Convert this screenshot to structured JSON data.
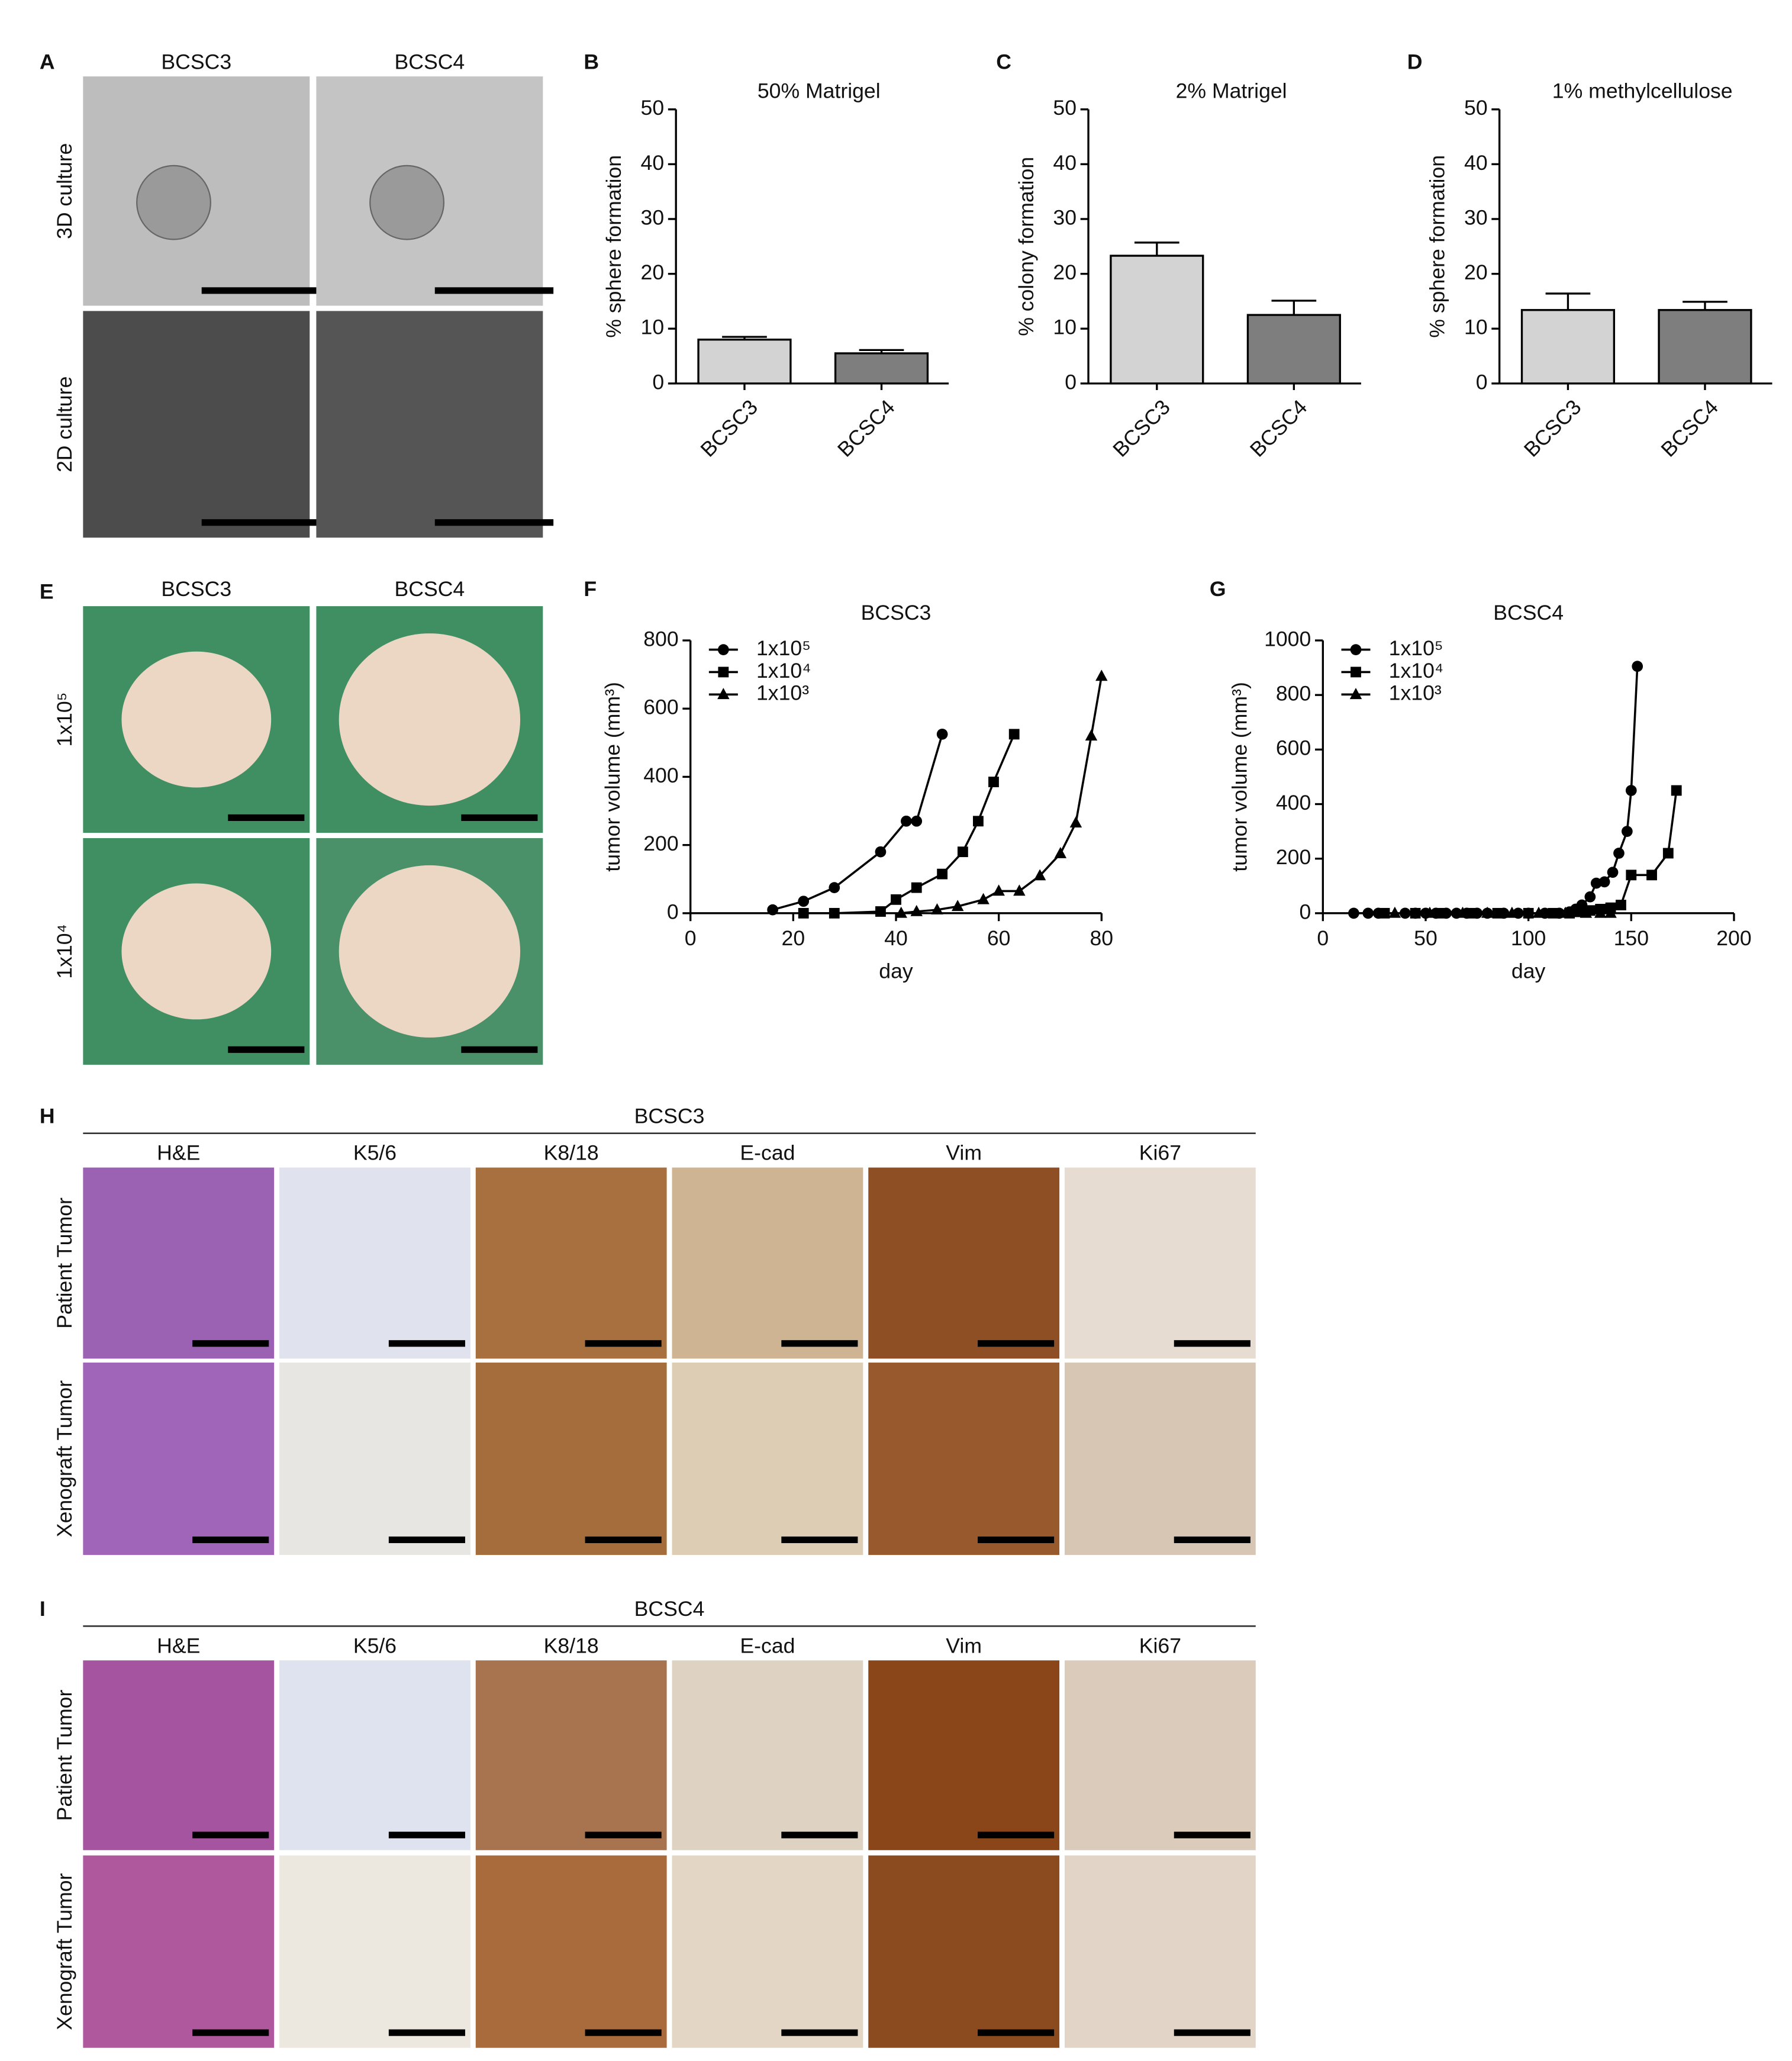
{
  "chart_data": [
    {
      "type": "bar",
      "label": "B",
      "title": "50% Matrigel",
      "y_label": "% sphere formation",
      "categories": [
        "BCSC3",
        "BCSC4"
      ],
      "values": [
        8,
        5.5
      ],
      "errors": [
        0.5,
        0.6
      ],
      "colors": [
        "#d3d3d3",
        "#7e7e7e"
      ],
      "ylim": [
        0,
        50
      ],
      "yticks": [
        0,
        10,
        20,
        30,
        40,
        50
      ]
    },
    {
      "type": "bar",
      "label": "C",
      "title": "2% Matrigel",
      "y_label": "% colony formation",
      "categories": [
        "BCSC3",
        "BCSC4"
      ],
      "values": [
        23.3,
        12.5
      ],
      "errors": [
        2.4,
        2.6
      ],
      "colors": [
        "#d3d3d3",
        "#7e7e7e"
      ],
      "ylim": [
        0,
        50
      ],
      "yticks": [
        0,
        10,
        20,
        30,
        40,
        50
      ]
    },
    {
      "type": "bar",
      "label": "D",
      "title": "1% methylcellulose",
      "y_label": "% sphere formation",
      "categories": [
        "BCSC3",
        "BCSC4"
      ],
      "values": [
        13.4,
        13.4
      ],
      "errors": [
        3,
        1.5
      ],
      "colors": [
        "#d3d3d3",
        "#7e7e7e"
      ],
      "ylim": [
        0,
        50
      ],
      "yticks": [
        0,
        10,
        20,
        30,
        40,
        50
      ]
    },
    {
      "type": "line",
      "label": "F",
      "title": "BCSC3",
      "x_label": "day",
      "y_label": "tumor volume (mm³)",
      "xlim": [
        0,
        80
      ],
      "xticks": [
        0,
        20,
        40,
        60,
        80
      ],
      "ylim": [
        0,
        800
      ],
      "yticks": [
        0,
        200,
        400,
        600,
        800
      ],
      "legend": "upper left",
      "series": [
        {
          "name": "1x10⁵",
          "color": "#000000",
          "marker": "circle",
          "x": [
            16,
            22,
            28,
            37,
            42,
            44,
            49
          ],
          "values": [
            10,
            35,
            75,
            180,
            270,
            270,
            525
          ]
        },
        {
          "name": "1x10⁴",
          "color": "#000000",
          "marker": "square",
          "x": [
            22,
            28,
            37,
            40,
            44,
            49,
            53,
            56,
            59,
            63
          ],
          "values": [
            0,
            0,
            5,
            40,
            75,
            115,
            180,
            270,
            385,
            525
          ]
        },
        {
          "name": "1x10³",
          "color": "#000000",
          "marker": "triangle",
          "x": [
            41,
            44,
            48,
            52,
            57,
            60,
            64,
            68,
            72,
            75,
            78,
            80
          ],
          "values": [
            0,
            5,
            10,
            20,
            40,
            65,
            65,
            110,
            175,
            265,
            520,
            695
          ]
        }
      ]
    },
    {
      "type": "line",
      "label": "G",
      "title": "BCSC4",
      "x_label": "day",
      "y_label": "tumor volume (mm³)",
      "xlim": [
        0,
        200
      ],
      "xticks": [
        0,
        50,
        100,
        150,
        200
      ],
      "ylim": [
        0,
        1000
      ],
      "yticks": [
        0,
        200,
        400,
        600,
        800,
        1000
      ],
      "legend": "upper left",
      "series": [
        {
          "name": "1x10⁵",
          "color": "#000000",
          "marker": "circle",
          "x": [
            15,
            22,
            27,
            40,
            45,
            50,
            55,
            60,
            65,
            70,
            75,
            80,
            88,
            95,
            100,
            108,
            115,
            120,
            123,
            126,
            130,
            133,
            137,
            141,
            144,
            148,
            150,
            153
          ],
          "values": [
            0,
            0,
            0,
            0,
            0,
            0,
            0,
            0,
            0,
            0,
            0,
            0,
            0,
            0,
            0,
            0,
            0,
            5,
            15,
            30,
            60,
            110,
            115,
            150,
            220,
            300,
            450,
            905
          ]
        },
        {
          "name": "1x10⁴",
          "color": "#000000",
          "marker": "square",
          "x": [
            30,
            45,
            58,
            72,
            85,
            100,
            112,
            120,
            125,
            130,
            135,
            140,
            145,
            150,
            160,
            168,
            172
          ],
          "values": [
            0,
            0,
            0,
            0,
            0,
            0,
            0,
            0,
            5,
            10,
            15,
            20,
            30,
            140,
            140,
            220,
            450
          ]
        },
        {
          "name": "1x10³",
          "color": "#000000",
          "marker": "triangle",
          "x": [
            35,
            52,
            68,
            80,
            92,
            105,
            118,
            128,
            135,
            140
          ],
          "values": [
            0,
            0,
            0,
            0,
            0,
            0,
            0,
            0,
            0,
            0
          ]
        }
      ]
    }
  ],
  "image_panels": [
    {
      "label": "A",
      "columns": [
        "BCSC3",
        "BCSC4"
      ],
      "rows": [
        "3D culture",
        "2D culture"
      ]
    },
    {
      "label": "E",
      "columns": [
        "BCSC3",
        "BCSC4"
      ],
      "rows": [
        "1x10⁵",
        "1x10⁴"
      ]
    },
    {
      "label": "H",
      "title": "BCSC3",
      "columns": [
        "H&E",
        "K5/6",
        "K8/18",
        "E-cad",
        "Vim",
        "Ki67"
      ],
      "rows": [
        "Patient Tumor",
        "Xenograft Tumor"
      ]
    },
    {
      "label": "I",
      "title": "BCSC4",
      "columns": [
        "H&E",
        "K5/6",
        "K8/18",
        "E-cad",
        "Vim",
        "Ki67"
      ],
      "rows": [
        "Patient Tumor",
        "Xenograft Tumor"
      ]
    }
  ]
}
